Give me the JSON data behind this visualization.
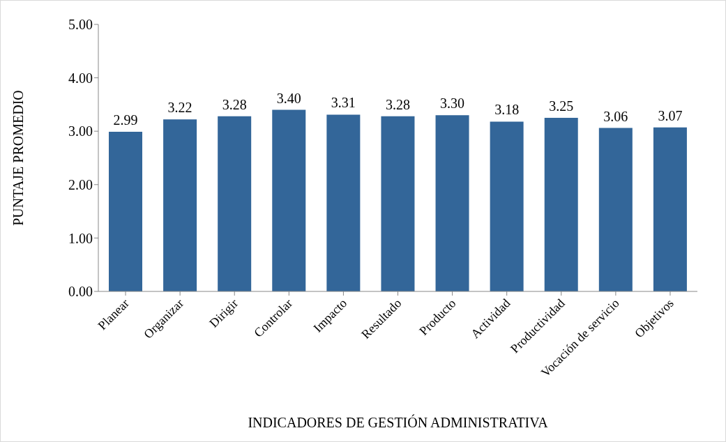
{
  "chart_data": {
    "type": "bar",
    "xlabel": "INDICADORES DE GESTIÓN ADMINISTRATIVA",
    "ylabel": "PUNTAJE PROMEDIO",
    "categories": [
      "Planear",
      "Organizar",
      "Dirigir",
      "Controlar",
      "Impacto",
      "Resultado",
      "Producto",
      "Actividad",
      "Productividad",
      "Vocación de servicio",
      "Objetivos"
    ],
    "values": [
      2.99,
      3.22,
      3.28,
      3.4,
      3.31,
      3.28,
      3.3,
      3.18,
      3.25,
      3.06,
      3.07
    ],
    "color": "#336699",
    "ylim": [
      0,
      5
    ],
    "yticks": [
      {
        "value": 0,
        "label": "0.00"
      },
      {
        "value": 1,
        "label": "1.00"
      },
      {
        "value": 2,
        "label": "2.00"
      },
      {
        "value": 3,
        "label": "3.00"
      },
      {
        "value": 4,
        "label": "4.00"
      },
      {
        "value": 5,
        "label": "5.00"
      }
    ],
    "value_labels": [
      "2.99",
      "3.22",
      "3.28",
      "3.40",
      "3.31",
      "3.28",
      "3.30",
      "3.18",
      "3.25",
      "3.06",
      "3.07"
    ],
    "grid": false,
    "legend": false
  }
}
